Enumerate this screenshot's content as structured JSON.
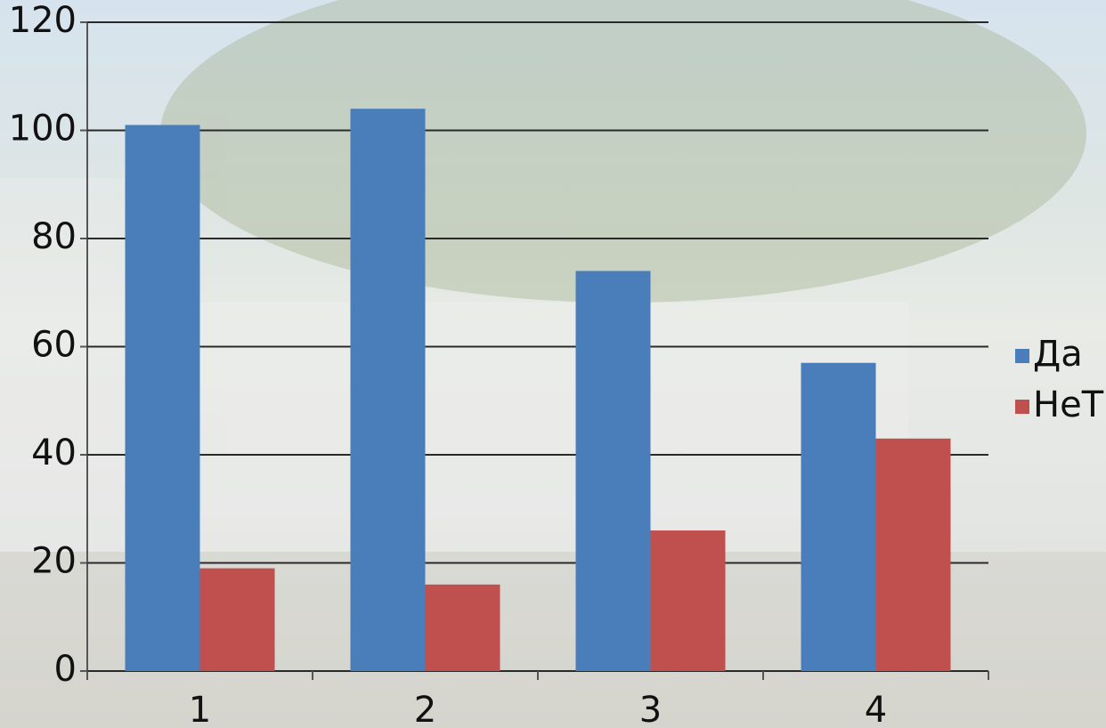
{
  "chart_data": {
    "type": "bar",
    "categories": [
      "1",
      "2",
      "3",
      "4"
    ],
    "series": [
      {
        "name": "Да",
        "color": "#4a7ebb",
        "values": [
          101,
          104,
          74,
          57
        ]
      },
      {
        "name": "НеТ",
        "color": "#c0504d",
        "values": [
          19,
          16,
          26,
          43
        ]
      }
    ],
    "ylim": [
      0,
      120
    ],
    "yticks": [
      0,
      20,
      40,
      60,
      80,
      100,
      120
    ],
    "grid": true,
    "legend": "right"
  }
}
